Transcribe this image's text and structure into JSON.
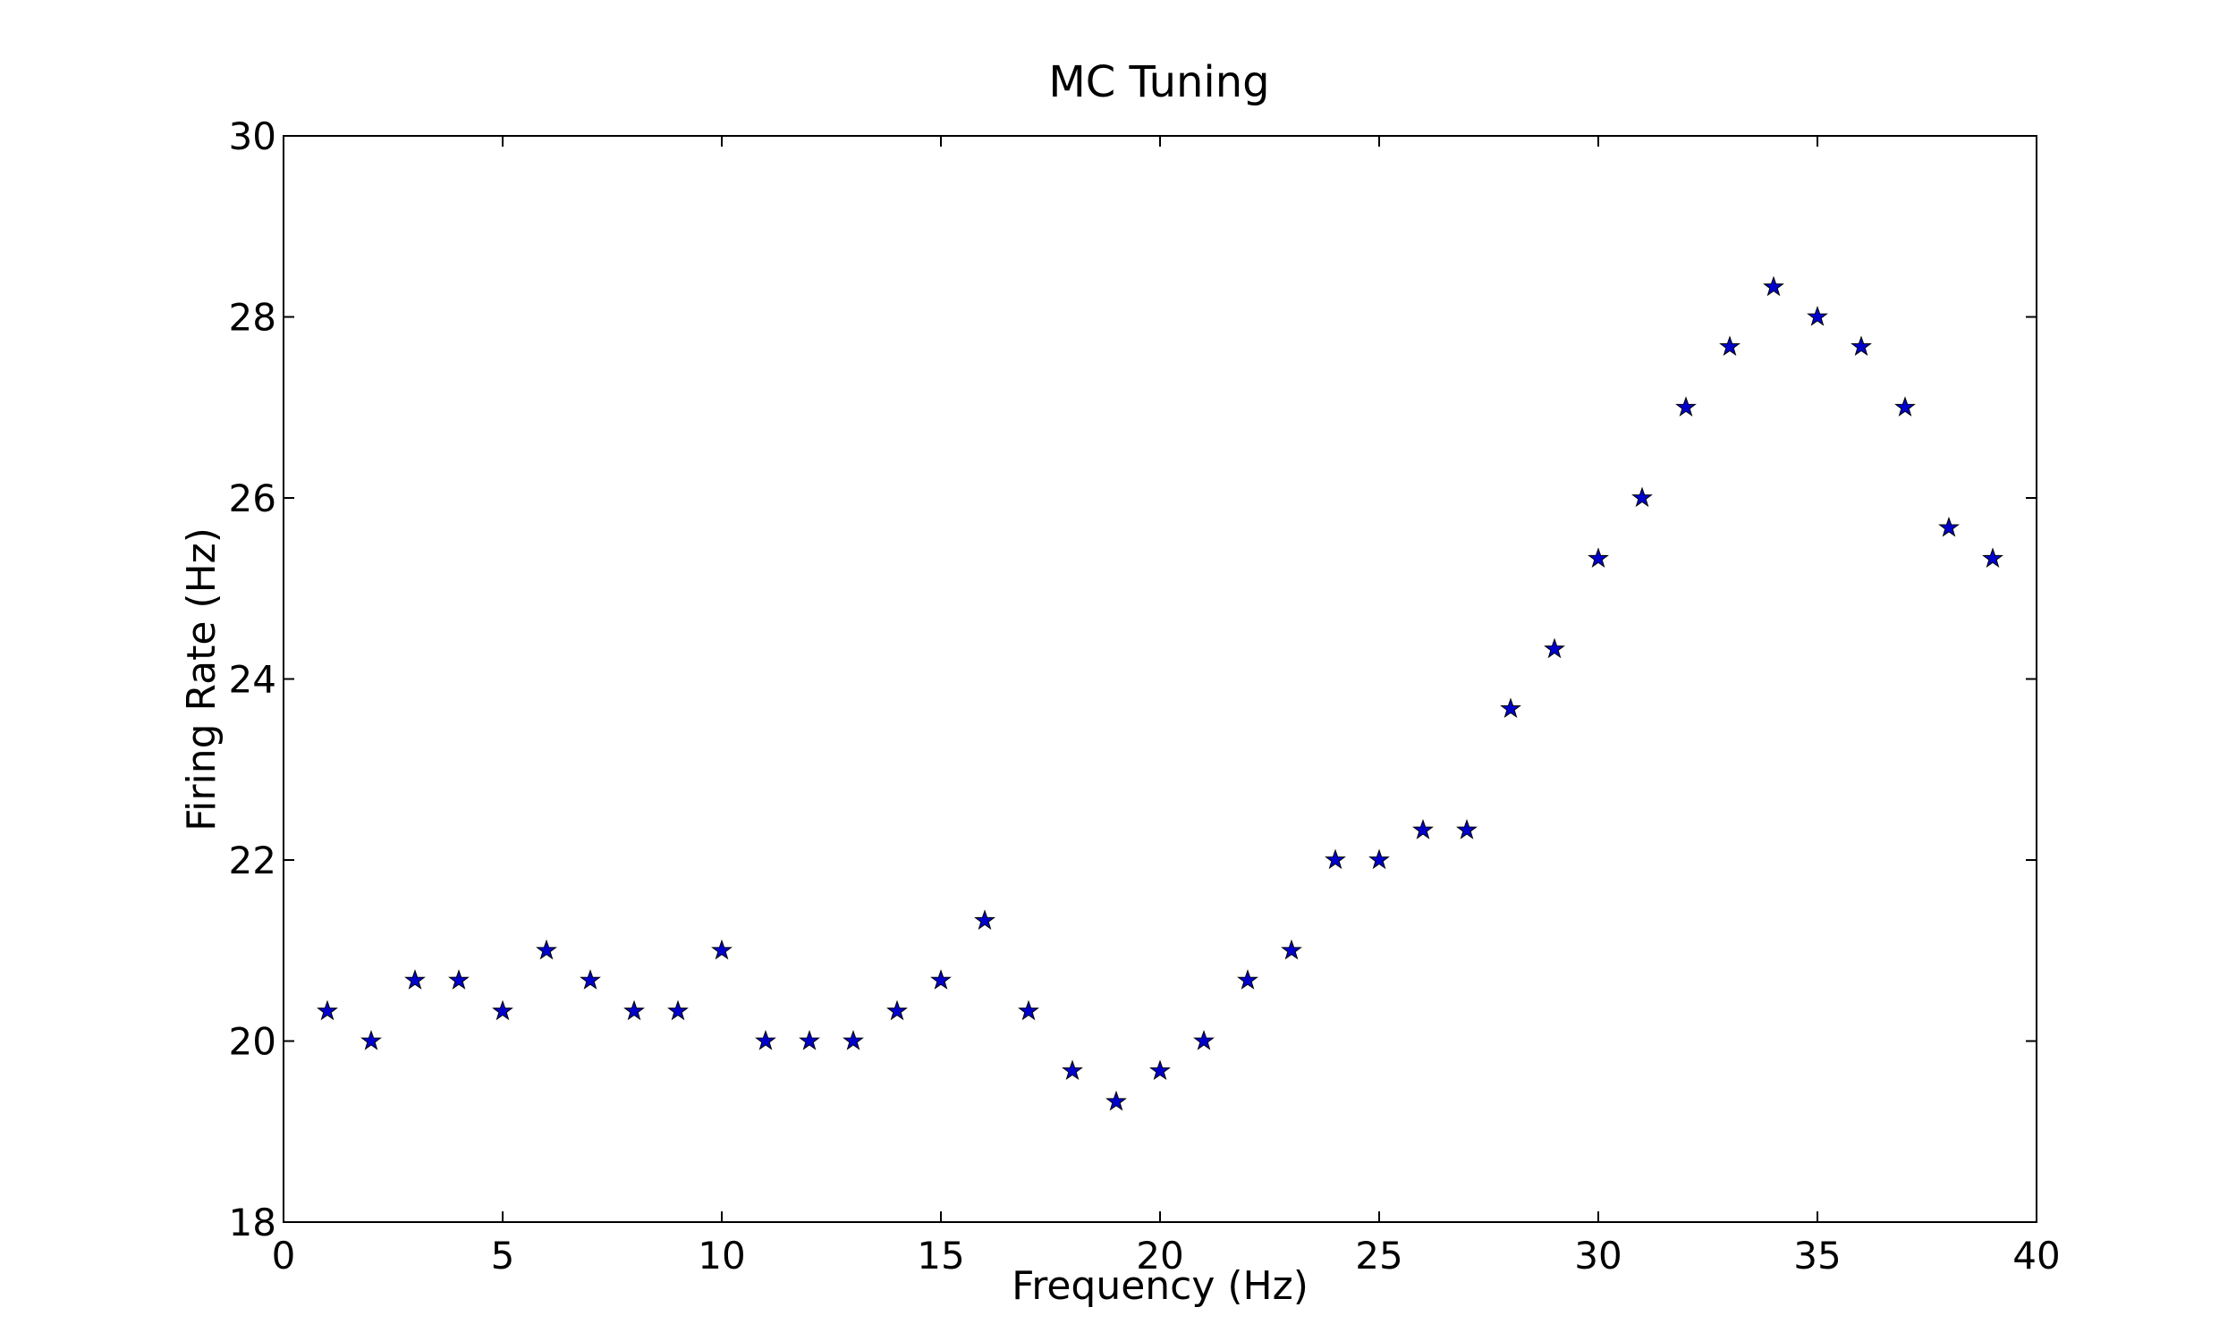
{
  "chart_data": {
    "type": "scatter",
    "title": "MC Tuning",
    "xlabel": "Frequency (Hz)",
    "ylabel": "Firing Rate (Hz)",
    "xlim": [
      0,
      40
    ],
    "ylim": [
      18,
      30
    ],
    "xticks": [
      0,
      5,
      10,
      15,
      20,
      25,
      30,
      35,
      40
    ],
    "yticks": [
      18,
      20,
      22,
      24,
      26,
      28,
      30
    ],
    "xtick_labels": [
      "0",
      "5",
      "10",
      "15",
      "20",
      "25",
      "30",
      "35",
      "40"
    ],
    "ytick_labels": [
      "18",
      "20",
      "22",
      "24",
      "26",
      "28",
      "30"
    ],
    "grid": false,
    "legend": "none",
    "marker": "star",
    "marker_color": "#0000cc",
    "series": [
      {
        "x": [
          1,
          2,
          3,
          4,
          5,
          6,
          7,
          8,
          9,
          10,
          11,
          12,
          13,
          14,
          15,
          16,
          17,
          18,
          19,
          20,
          21,
          22,
          23,
          24,
          25,
          26,
          27,
          28,
          29,
          30,
          31,
          32,
          33,
          34,
          35,
          36,
          37,
          38,
          39
        ],
        "y": [
          20.33,
          20.0,
          20.67,
          20.67,
          20.33,
          21.0,
          20.67,
          20.33,
          20.33,
          21.0,
          20.0,
          20.0,
          20.0,
          20.33,
          20.67,
          21.33,
          20.33,
          19.67,
          19.33,
          19.67,
          20.0,
          20.67,
          21.0,
          22.0,
          22.0,
          22.33,
          22.33,
          23.67,
          24.33,
          25.33,
          26.0,
          27.0,
          27.67,
          28.33,
          28.0,
          27.67,
          27.0,
          25.67,
          25.33
        ]
      }
    ]
  }
}
